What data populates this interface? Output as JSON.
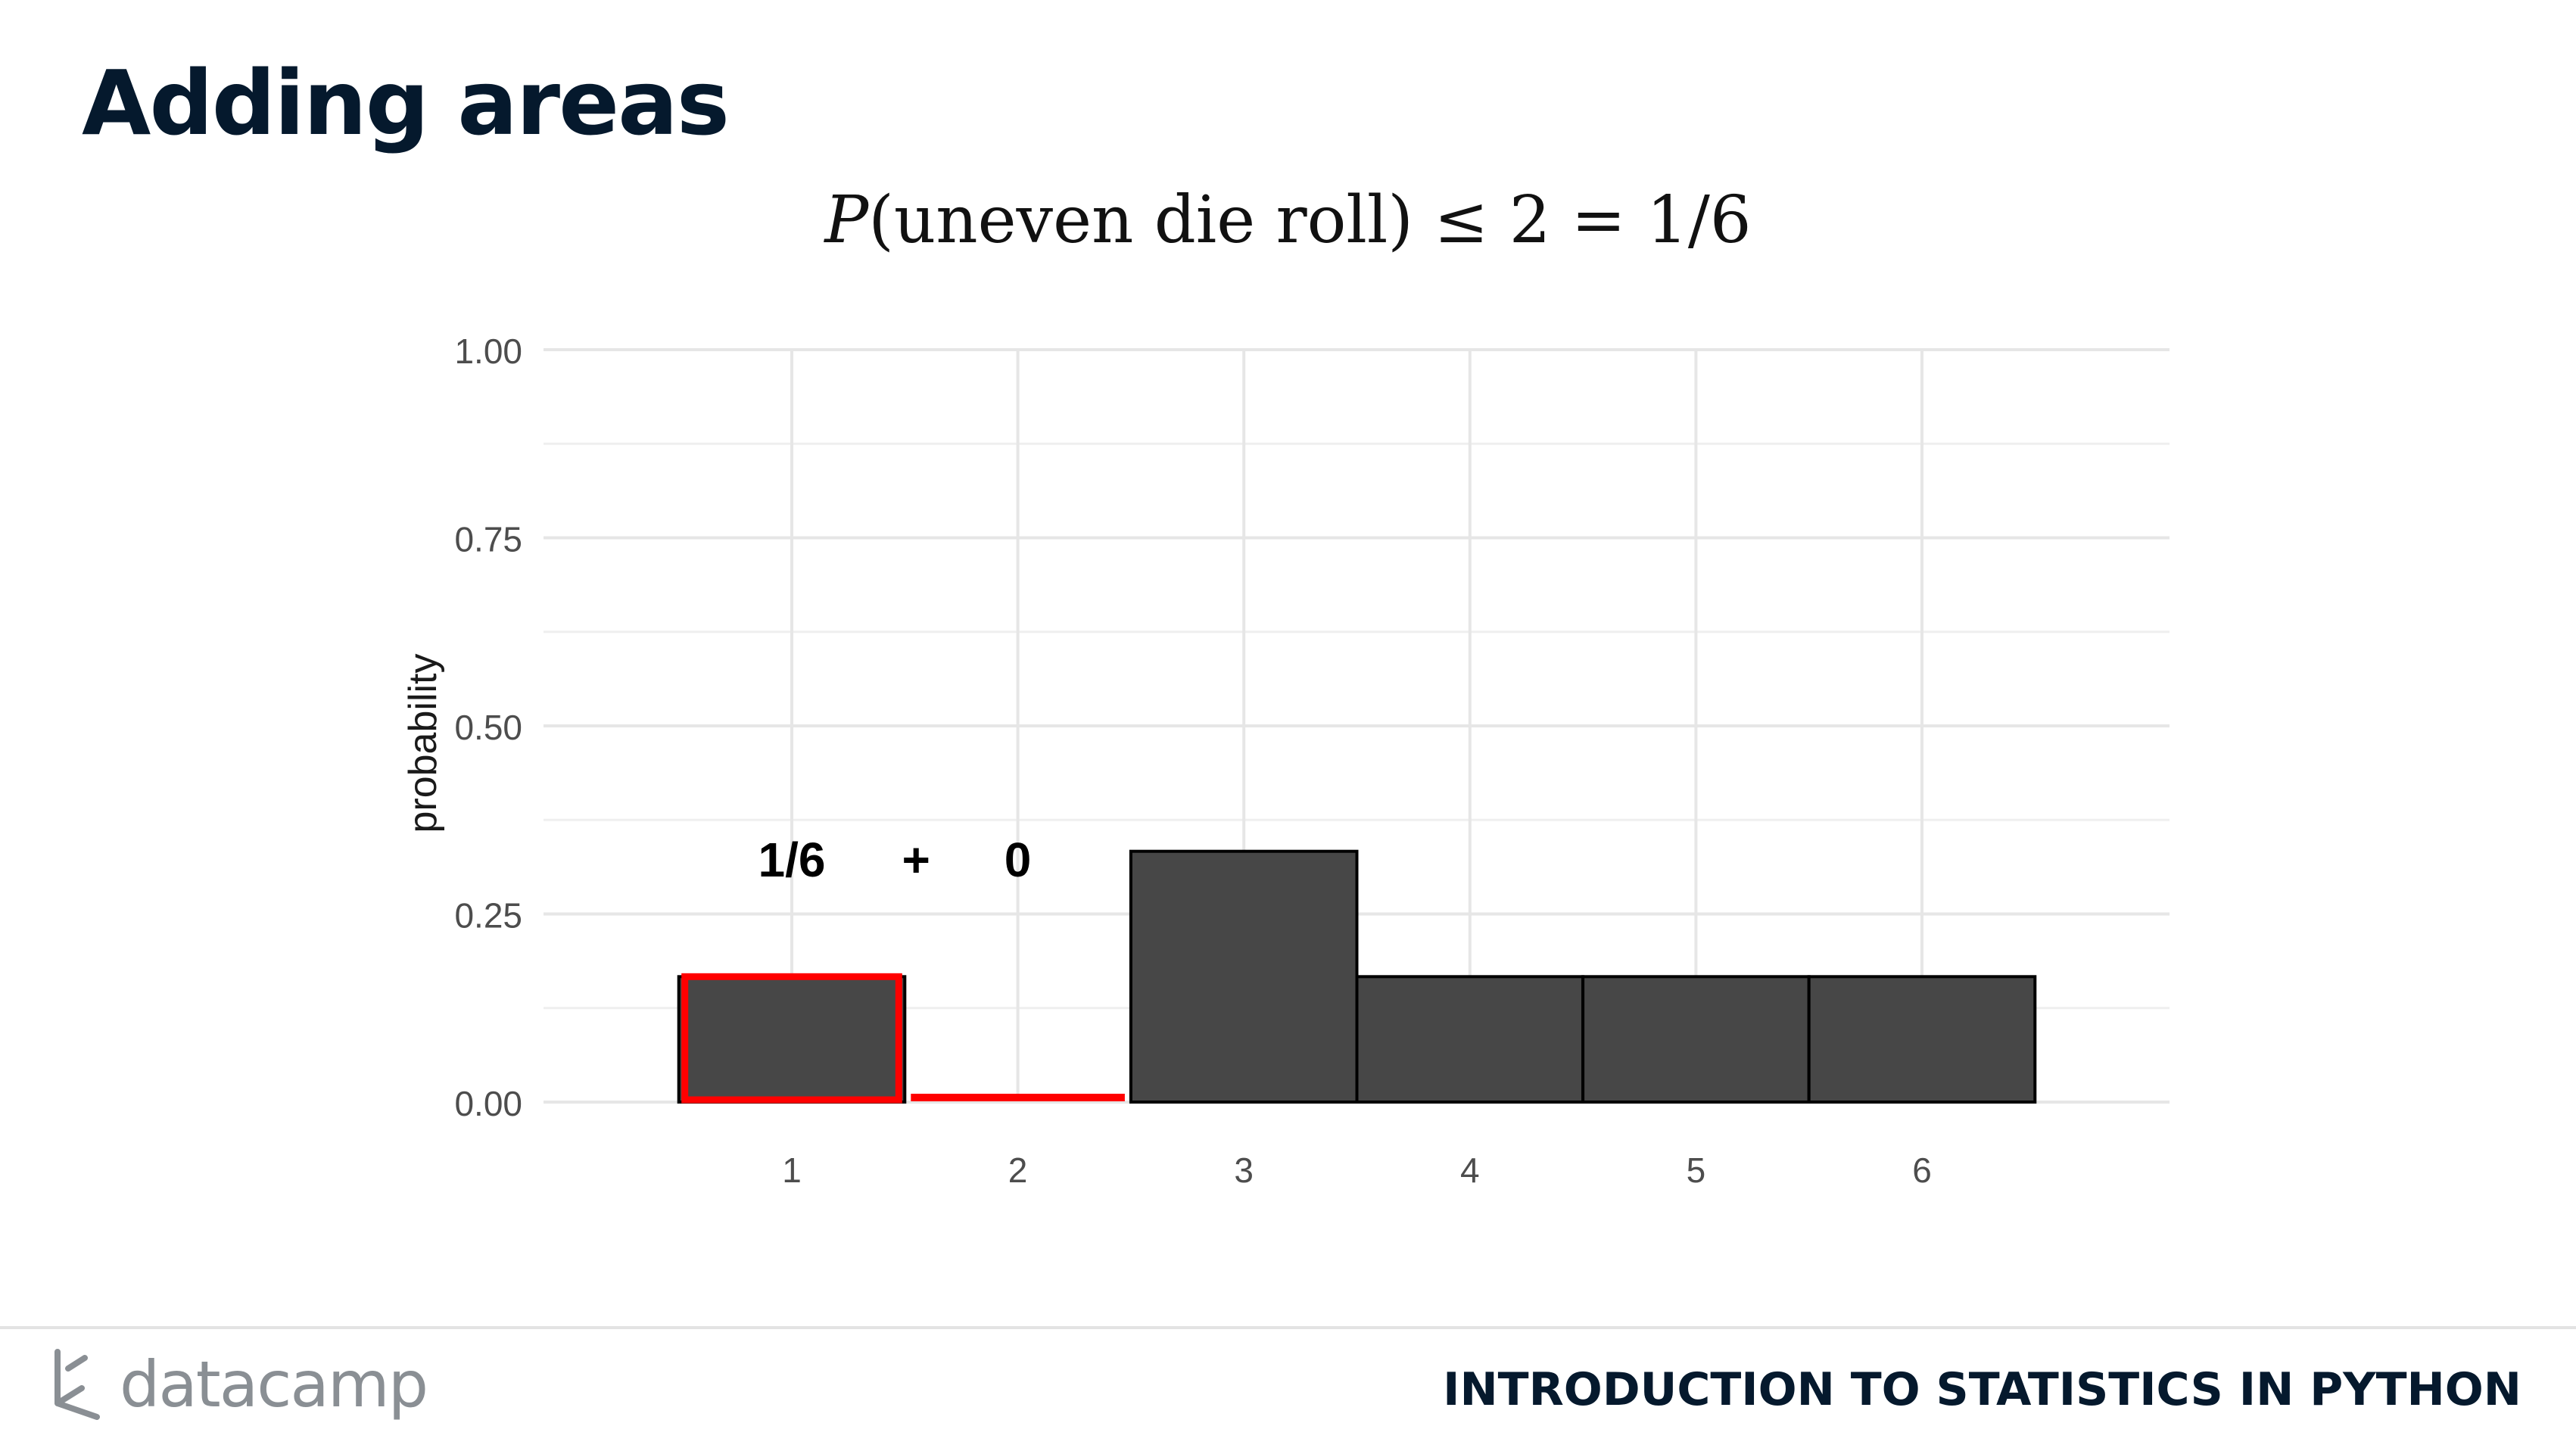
{
  "slide": {
    "title": "Adding areas",
    "formula": {
      "p": "P",
      "open": "(",
      "text": "uneven die roll",
      "close": ")",
      "rest": " ≤ 2 = 1/6"
    }
  },
  "footer": {
    "brand": "datacamp",
    "course": "INTRODUCTION TO STATISTICS IN PYTHON"
  },
  "colors": {
    "bar_fill": "#474747",
    "bar_stroke": "#000000",
    "highlight": "#ff0000",
    "grid": "#e6e6e6",
    "title": "#05192d"
  },
  "icons": {
    "brand_logo": "datacamp-logo-icon"
  },
  "chart_data": {
    "type": "bar",
    "categories": [
      "1",
      "2",
      "3",
      "4",
      "5",
      "6"
    ],
    "values": [
      0.1667,
      0,
      0.3333,
      0.1667,
      0.1667,
      0.1667
    ],
    "highlighted": [
      true,
      true,
      false,
      false,
      false,
      false
    ],
    "title": "",
    "xlabel": "",
    "ylabel": "probability",
    "ylim": [
      0,
      1
    ],
    "yticks": [
      "0.00",
      "0.25",
      "0.50",
      "0.75",
      "1.00"
    ],
    "grid": true,
    "legend": "none",
    "annotations": [
      {
        "text": "1/6",
        "x": 1,
        "y": 0.3
      },
      {
        "text": "+",
        "x": 1.55,
        "y": 0.3
      },
      {
        "text": "0",
        "x": 2,
        "y": 0.3
      }
    ]
  }
}
